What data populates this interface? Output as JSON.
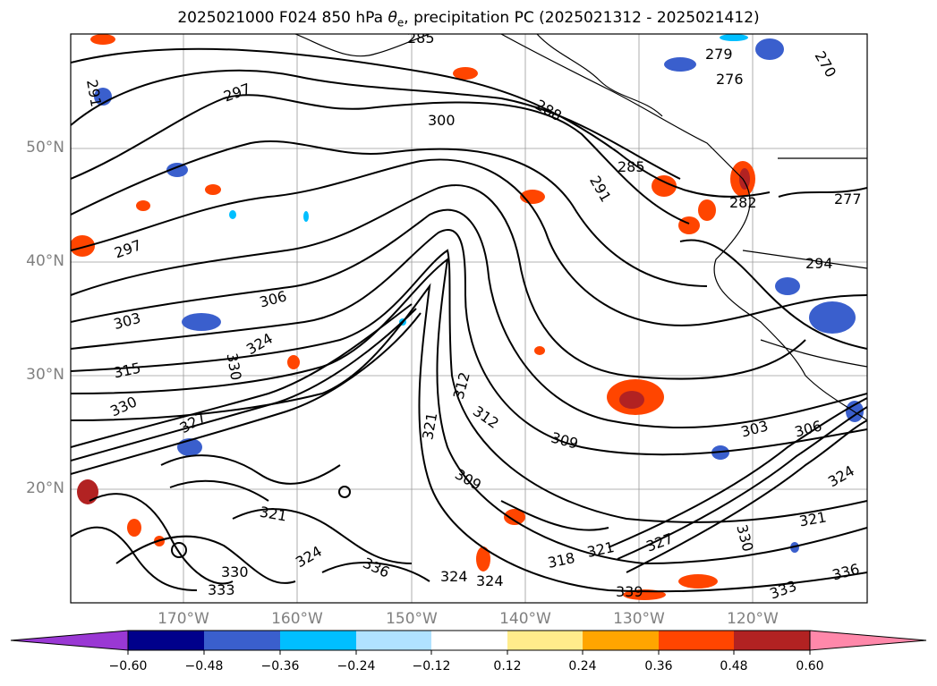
{
  "title": {
    "prefix": "2025021000 F024 850 hPa ",
    "theta": "θ",
    "sub": "e",
    "suffix": ", precipitation PC (2025021312 - 2025021412)"
  },
  "lat_labels": [
    "50°N",
    "40°N",
    "30°N",
    "20°N"
  ],
  "lon_labels": [
    "170°W",
    "160°W",
    "150°W",
    "140°W",
    "130°W",
    "120°W"
  ],
  "colorbar": {
    "ticks": [
      "−0.60",
      "−0.48",
      "−0.36",
      "−0.24",
      "−0.12",
      "0.12",
      "0.24",
      "0.36",
      "0.48",
      "0.60"
    ],
    "colors": [
      "#9a38d4",
      "#00008b",
      "#3a5fcd",
      "#00bfff",
      "#b0e2ff",
      "#ffffff",
      "#ffec8b",
      "#ffa500",
      "#ff4500",
      "#b22222",
      "#ff88aa"
    ]
  },
  "contour_labels": [
    "291",
    "297",
    "285",
    "279",
    "276",
    "270",
    "300",
    "288",
    "285",
    "291",
    "282",
    "277",
    "297",
    "294",
    "306",
    "303",
    "315",
    "324",
    "330",
    "327",
    "330",
    "312",
    "309",
    "321",
    "312",
    "309",
    "303",
    "306",
    "324",
    "321",
    "330",
    "333",
    "336",
    "339",
    "324",
    "324",
    "318",
    "321",
    "327",
    "336",
    "330",
    "333",
    "321",
    "324"
  ]
}
